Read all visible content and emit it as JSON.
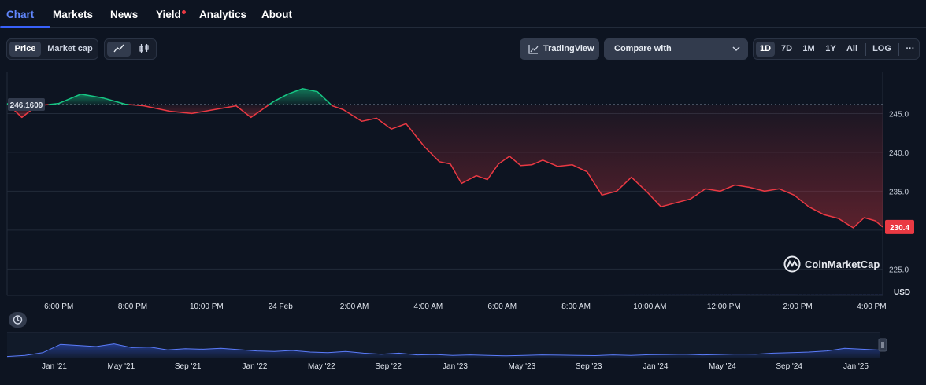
{
  "tabs": [
    "Chart",
    "Markets",
    "News",
    "Yield",
    "Analytics",
    "About"
  ],
  "toolbar": {
    "price": "Price",
    "market_cap": "Market cap",
    "line_icon": "line-chart-icon",
    "candles_icon": "candlestick-icon",
    "tradingview": "TradingView",
    "tradingview_icon": "tradingview-icon",
    "compare": "Compare with",
    "ranges": [
      "1D",
      "7D",
      "1M",
      "1Y",
      "All"
    ],
    "log": "LOG",
    "more": "···"
  },
  "watermark": "CoinMarketCap",
  "currency": "USD",
  "colors": {
    "up": "#16c784",
    "down": "#ea3943",
    "accent": "#3861fb",
    "volume": "#2f3b66"
  },
  "chart_data": {
    "type": "line",
    "baseline": 246.1609,
    "baseline_label": "246.1609",
    "last_label": "230.4",
    "ylim": [
      221.6,
      250.3
    ],
    "yticks": [
      225.0,
      230.0,
      235.0,
      240.0,
      245.0
    ],
    "ytick_labels": [
      "225.0",
      "230.0",
      "235.0",
      "240.0",
      "245.0"
    ],
    "x_start": 16.6,
    "x_end": 40.3,
    "xticks": [
      18,
      20,
      22,
      24,
      26,
      28,
      30,
      32,
      34,
      36,
      38,
      40
    ],
    "xtick_labels": [
      "6:00 PM",
      "8:00 PM",
      "10:00 PM",
      "24 Feb",
      "2:00 AM",
      "4:00 AM",
      "6:00 AM",
      "8:00 AM",
      "10:00 AM",
      "12:00 PM",
      "2:00 PM",
      "4:00 PM"
    ],
    "series": [
      {
        "x": [
          16.6,
          17.0,
          17.4,
          18.0,
          18.6,
          19.2,
          19.8,
          20.3,
          21.0,
          21.6,
          22.2,
          22.8,
          23.2,
          23.8,
          24.2,
          24.6,
          25.0,
          25.4,
          25.7,
          26.2,
          26.6,
          27.0,
          27.4,
          27.9,
          28.3,
          28.6,
          28.9,
          29.3,
          29.6,
          29.9,
          30.2,
          30.5,
          30.8,
          31.1,
          31.5,
          31.9,
          32.3,
          32.7,
          33.1,
          33.5,
          33.9,
          34.3,
          34.7,
          35.1,
          35.5,
          35.9,
          36.3,
          36.7,
          37.1,
          37.5,
          37.9,
          38.3,
          38.7,
          39.1,
          39.5,
          39.8,
          40.1,
          40.3
        ],
        "values": [
          246.3,
          244.5,
          246.0,
          246.3,
          247.5,
          247.0,
          246.2,
          246.0,
          245.3,
          245.0,
          245.5,
          246.0,
          244.5,
          246.5,
          247.5,
          248.2,
          247.8,
          246.0,
          245.5,
          244.0,
          244.4,
          243.0,
          243.7,
          240.7,
          238.8,
          238.5,
          236.0,
          237.0,
          236.5,
          238.5,
          239.5,
          238.3,
          238.4,
          239.0,
          238.2,
          238.4,
          237.5,
          234.5,
          235.0,
          236.8,
          235.0,
          233.0,
          233.5,
          234.0,
          235.3,
          235.0,
          235.8,
          235.5,
          235.0,
          235.3,
          234.5,
          233.0,
          232.0,
          231.5,
          230.3,
          231.6,
          231.2,
          230.4
        ]
      }
    ],
    "volume_values": [
      221.61,
      221.6,
      221.59,
      221.6,
      221.58,
      221.6,
      221.62,
      221.65,
      221.7,
      221.72,
      221.74,
      221.73,
      221.74
    ],
    "volume_ylim": [
      218.0,
      222.5
    ],
    "overview": {
      "xtick_labels": [
        "Jan '21",
        "May '21",
        "Sep '21",
        "Jan '22",
        "May '22",
        "Sep '22",
        "Jan '23",
        "May '23",
        "Sep '23",
        "Jan '24",
        "May '24",
        "Sep '24",
        "Jan '25"
      ],
      "values": [
        0.05,
        0.1,
        0.22,
        0.6,
        0.55,
        0.5,
        0.62,
        0.45,
        0.48,
        0.35,
        0.4,
        0.38,
        0.42,
        0.36,
        0.3,
        0.28,
        0.32,
        0.25,
        0.22,
        0.28,
        0.2,
        0.15,
        0.2,
        0.12,
        0.14,
        0.1,
        0.12,
        0.1,
        0.08,
        0.1,
        0.12,
        0.11,
        0.1,
        0.09,
        0.12,
        0.1,
        0.13,
        0.14,
        0.15,
        0.12,
        0.14,
        0.16,
        0.15,
        0.2,
        0.22,
        0.25,
        0.3,
        0.42,
        0.38,
        0.34
      ]
    }
  }
}
